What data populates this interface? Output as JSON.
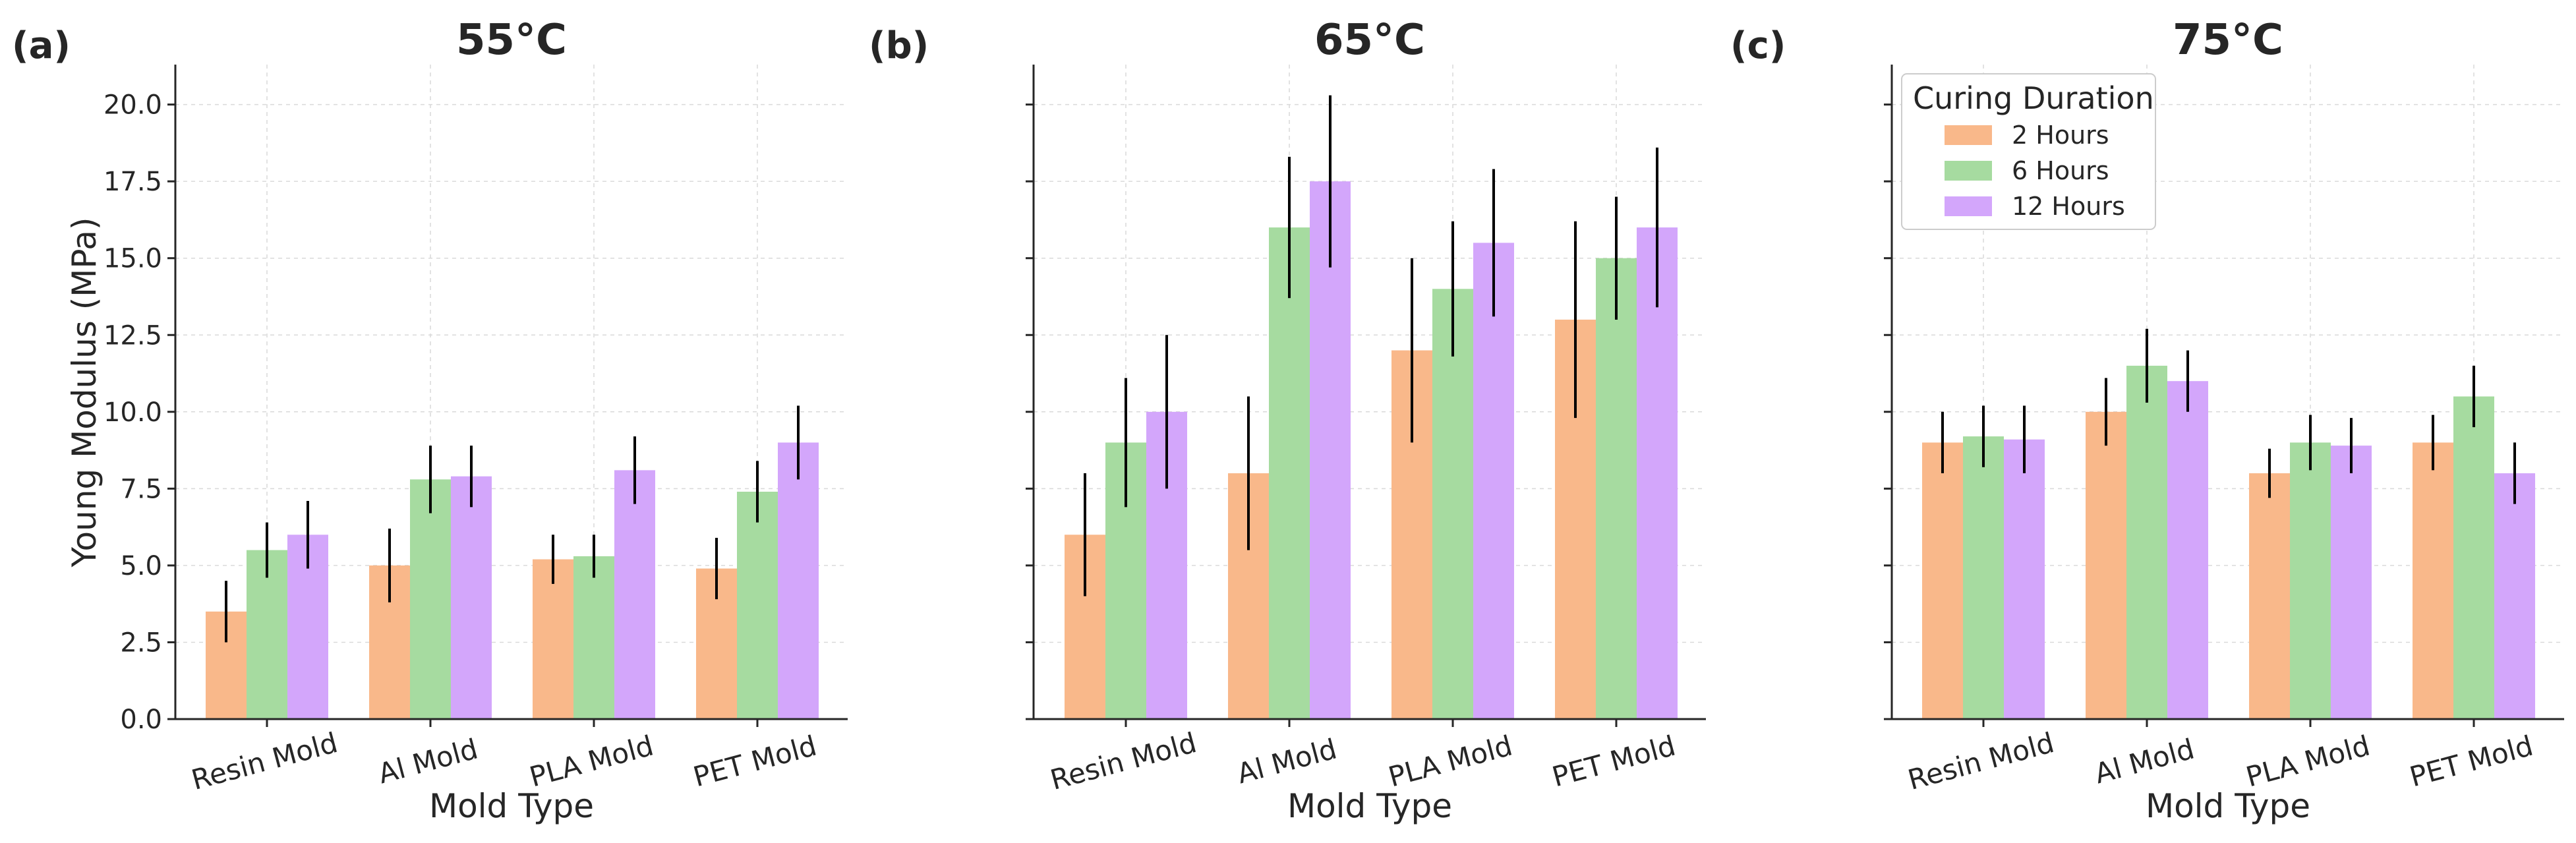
{
  "chart_data": [
    {
      "type": "bar",
      "panel_label": "(a)",
      "title": "55°C",
      "xlabel": "Mold Type",
      "ylabel": "Young Modulus (MPa)",
      "categories": [
        "Resin Mold",
        "Al Mold",
        "PLA Mold",
        "PET Mold"
      ],
      "series": [
        {
          "name": "2 Hours",
          "values": [
            3.5,
            5.0,
            5.2,
            4.9
          ],
          "errors": [
            1.0,
            1.2,
            0.8,
            1.0
          ]
        },
        {
          "name": "6 Hours",
          "values": [
            5.5,
            7.8,
            5.3,
            7.4
          ],
          "errors": [
            0.9,
            1.1,
            0.7,
            1.0
          ]
        },
        {
          "name": "12 Hours",
          "values": [
            6.0,
            7.9,
            8.1,
            9.0
          ],
          "errors": [
            1.1,
            1.0,
            1.1,
            1.2
          ]
        }
      ],
      "ylim": [
        0,
        21.3
      ],
      "yticks": [
        "0.0",
        "2.5",
        "5.0",
        "7.5",
        "10.0",
        "12.5",
        "15.0",
        "17.5",
        "20.0"
      ],
      "show_tick_labels": true,
      "grid": true
    },
    {
      "type": "bar",
      "panel_label": "(b)",
      "title": "65°C",
      "xlabel": "Mold Type",
      "ylabel": "",
      "categories": [
        "Resin Mold",
        "Al Mold",
        "PLA Mold",
        "PET Mold"
      ],
      "series": [
        {
          "name": "2 Hours",
          "values": [
            6.0,
            8.0,
            12.0,
            13.0
          ],
          "errors": [
            2.0,
            2.5,
            3.0,
            3.2
          ]
        },
        {
          "name": "6 Hours",
          "values": [
            9.0,
            16.0,
            14.0,
            15.0
          ],
          "errors": [
            2.1,
            2.3,
            2.2,
            2.0
          ]
        },
        {
          "name": "12 Hours",
          "values": [
            10.0,
            17.5,
            15.5,
            16.0
          ],
          "errors": [
            2.5,
            2.8,
            2.4,
            2.6
          ]
        }
      ],
      "ylim": [
        0,
        21.3
      ],
      "yticks": [
        "0.0",
        "2.5",
        "5.0",
        "7.5",
        "10.0",
        "12.5",
        "15.0",
        "17.5",
        "20.0"
      ],
      "show_tick_labels": false,
      "grid": true
    },
    {
      "type": "bar",
      "panel_label": "(c)",
      "title": "75°C",
      "xlabel": "Mold Type",
      "ylabel": "",
      "categories": [
        "Resin Mold",
        "Al Mold",
        "PLA Mold",
        "PET Mold"
      ],
      "series": [
        {
          "name": "2 Hours",
          "values": [
            9.0,
            10.0,
            8.0,
            9.0
          ],
          "errors": [
            1.0,
            1.1,
            0.8,
            0.9
          ]
        },
        {
          "name": "6 Hours",
          "values": [
            9.2,
            11.5,
            9.0,
            10.5
          ],
          "errors": [
            1.0,
            1.2,
            0.9,
            1.0
          ]
        },
        {
          "name": "12 Hours",
          "values": [
            9.1,
            11.0,
            8.9,
            8.0
          ],
          "errors": [
            1.1,
            1.0,
            0.9,
            1.0
          ]
        }
      ],
      "ylim": [
        0,
        21.3
      ],
      "yticks": [
        "0.0",
        "2.5",
        "5.0",
        "7.5",
        "10.0",
        "12.5",
        "15.0",
        "17.5",
        "20.0"
      ],
      "show_tick_labels": false,
      "grid": true,
      "legend": {
        "title": "Curing Duration",
        "placement": "top-left",
        "entries": [
          "2 Hours",
          "6 Hours",
          "12 Hours"
        ]
      }
    }
  ],
  "colors": {
    "2 Hours": "#f9b88a",
    "6 Hours": "#a6dba0",
    "12 Hours": "#d3a6fb"
  }
}
